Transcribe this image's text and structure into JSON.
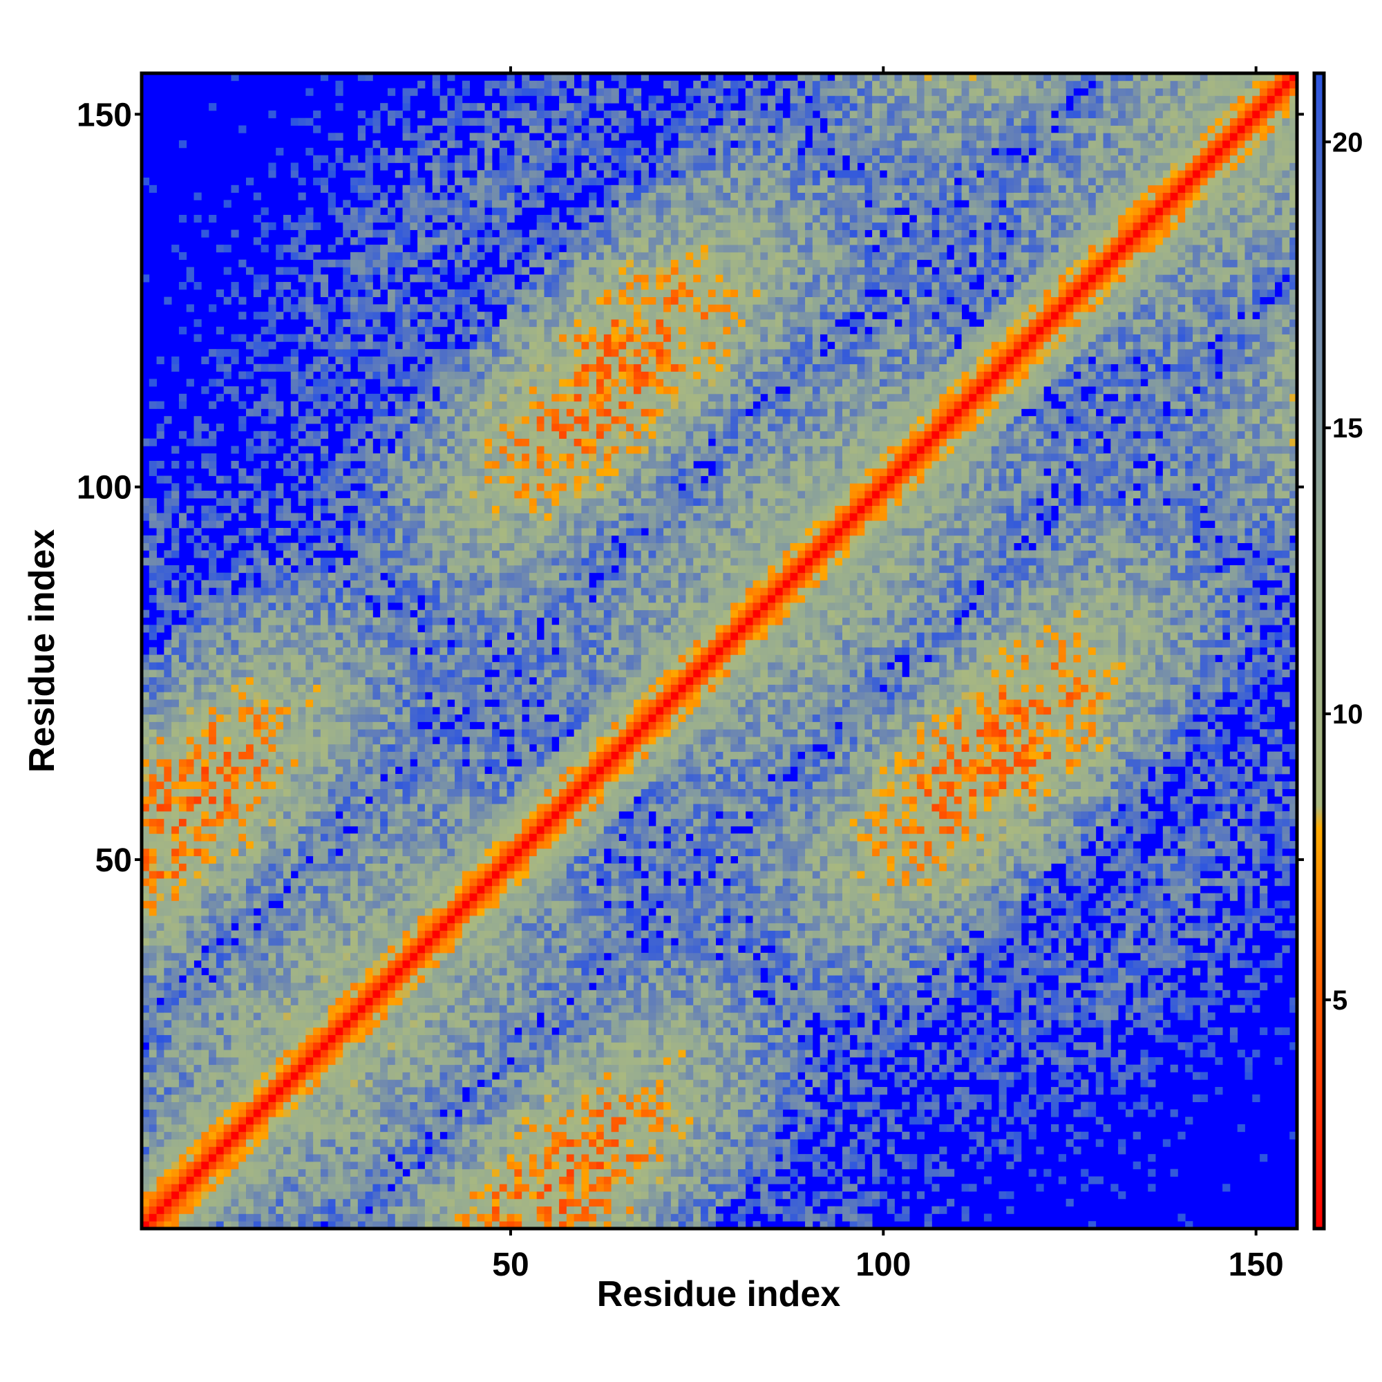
{
  "chart_data": {
    "type": "heatmap",
    "title": "",
    "xlabel": "Residue index",
    "ylabel": "Residue index",
    "xlim": [
      1,
      155
    ],
    "ylim": [
      1,
      155
    ],
    "x_ticks": [
      50,
      100,
      150
    ],
    "y_ticks": [
      50,
      100,
      150
    ],
    "matrix_size": 155,
    "description_of_values": "pairwise residue distance matrix, symmetric; low values along the diagonal",
    "colorbar": {
      "ticks": [
        5,
        10,
        15,
        20
      ],
      "range": [
        1,
        21.2
      ],
      "colors": [
        {
          "value": 1,
          "color": "#ff0000"
        },
        {
          "value": 5.5,
          "color": "#ff6600"
        },
        {
          "value": 8,
          "color": "#ffaa00"
        },
        {
          "value": 8.4,
          "color": "#a9b880"
        },
        {
          "value": 13,
          "color": "#98ad90"
        },
        {
          "value": 17,
          "color": "#6e88b0"
        },
        {
          "value": 21.2,
          "color": "#2d55e0"
        }
      ],
      "out_of_range_color": "#0000ff"
    },
    "grid": false,
    "legend": "colorbar right"
  }
}
